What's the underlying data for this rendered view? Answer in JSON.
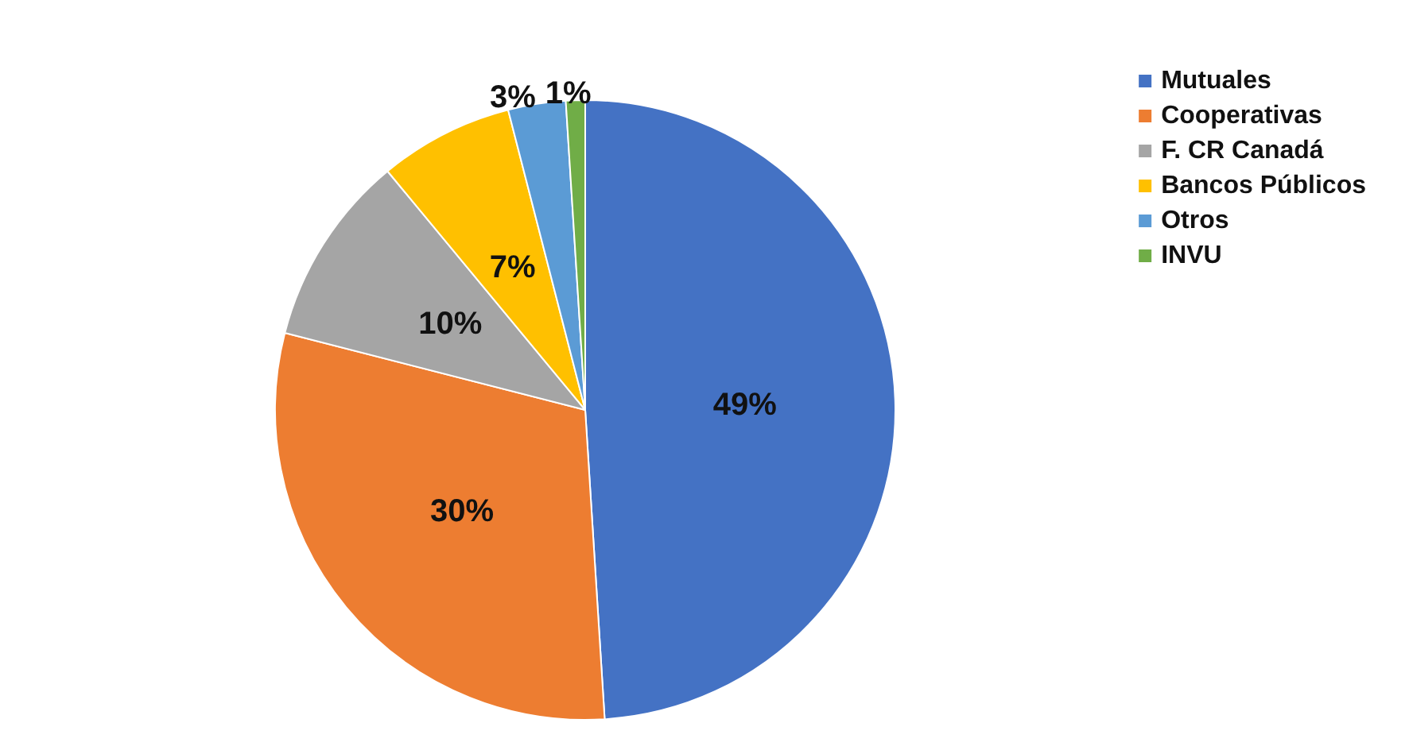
{
  "chart_data": {
    "type": "pie",
    "categories": [
      "Mutuales",
      "Cooperativas",
      "F. CR Canadá",
      "Bancos Públicos",
      "Otros",
      "INVU"
    ],
    "values": [
      49,
      30,
      10,
      7,
      3,
      1
    ],
    "value_labels": [
      "49%",
      "30%",
      "10%",
      "7%",
      "3%",
      "1%"
    ],
    "colors": [
      "#4472c4",
      "#ed7d31",
      "#a5a5a5",
      "#ffc000",
      "#5b9bd5",
      "#70ad47"
    ],
    "legend": "top right"
  }
}
